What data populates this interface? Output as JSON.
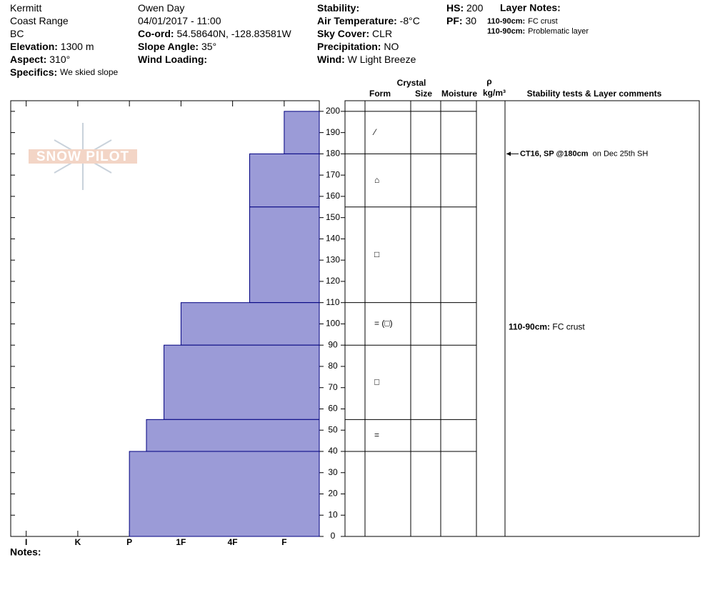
{
  "header": {
    "columns": [
      [
        {
          "value": "Kermitt"
        },
        {
          "value": "Coast Range"
        },
        {
          "value": "BC"
        },
        {
          "label": "Elevation:",
          "value": "1300 m"
        },
        {
          "label": "Aspect:",
          "value": "310°"
        },
        {
          "label": "Specifics:",
          "value": "We skied slope",
          "small": true
        }
      ],
      [
        {
          "value": "Owen Day"
        },
        {
          "value": "04/01/2017 - 11:00"
        },
        {
          "label": "Co-ord:",
          "value": "54.58640N, -128.83581W"
        },
        {
          "label": "Slope Angle:",
          "value": "35°"
        },
        {
          "label": "Wind Loading:"
        }
      ],
      [
        {
          "label": "Stability:"
        },
        {
          "label": "Air Temperature:",
          "value": "-8°C"
        },
        {
          "label": "Sky Cover:",
          "value": "CLR"
        },
        {
          "label": "Precipitation:",
          "value": "NO"
        },
        {
          "label": "Wind:",
          "value": "W Light Breeze"
        }
      ],
      [
        {
          "label": "HS:",
          "value": "200"
        },
        {
          "label": "PF:",
          "value": "30"
        }
      ]
    ],
    "layer_notes_title": "Layer Notes:",
    "layer_notes": [
      {
        "label": "110-90cm:",
        "value": "FC crust"
      },
      {
        "label": "110-90cm:",
        "value": "Problematic layer"
      }
    ]
  },
  "logo": "SNOW PILOT",
  "table_headers": {
    "crystal": "Crystal",
    "form": "Form",
    "size": "Size",
    "moisture": "Moisture",
    "rho": "ρ",
    "density": "kg/m³",
    "comments": "Stability tests & Layer comments"
  },
  "notes_label": "Notes:",
  "chart_data": {
    "type": "hardness-profile",
    "color": "#9b9bd7",
    "edge_color": "#000080",
    "ylim": [
      0,
      205
    ],
    "yticks": [
      0,
      10,
      20,
      30,
      40,
      50,
      60,
      70,
      80,
      90,
      100,
      110,
      120,
      130,
      140,
      150,
      160,
      170,
      180,
      190,
      200
    ],
    "xlim": [
      6.3,
      0.32
    ],
    "xticks": [
      {
        "value": 6,
        "label": "I"
      },
      {
        "value": 5,
        "label": "K"
      },
      {
        "value": 4,
        "label": "P"
      },
      {
        "value": 3,
        "label": "1F"
      },
      {
        "value": 2,
        "label": "4F"
      },
      {
        "value": 1,
        "label": "F"
      }
    ],
    "layers": [
      {
        "top": 200,
        "bottom": 180,
        "hardness": 1,
        "form": "⁄"
      },
      {
        "top": 180,
        "bottom": 155,
        "hardness": 1.67,
        "form": "⌂"
      },
      {
        "top": 155,
        "bottom": 110,
        "hardness": 1.67,
        "form": "□"
      },
      {
        "top": 110,
        "bottom": 90,
        "hardness": 3,
        "form": "= (□)"
      },
      {
        "top": 90,
        "bottom": 55,
        "hardness": 3.33,
        "form": "□"
      },
      {
        "top": 55,
        "bottom": 40,
        "hardness": 3.67,
        "form": "="
      },
      {
        "top": 40,
        "bottom": 0,
        "hardness": 4
      }
    ],
    "stability_tests": [
      {
        "depth": 180,
        "label": "CT16, SP @180cm",
        "text": "on Dec 25th SH"
      }
    ],
    "layer_comments": [
      {
        "depth": 100,
        "label": "110-90cm:",
        "text": "FC crust"
      }
    ]
  }
}
